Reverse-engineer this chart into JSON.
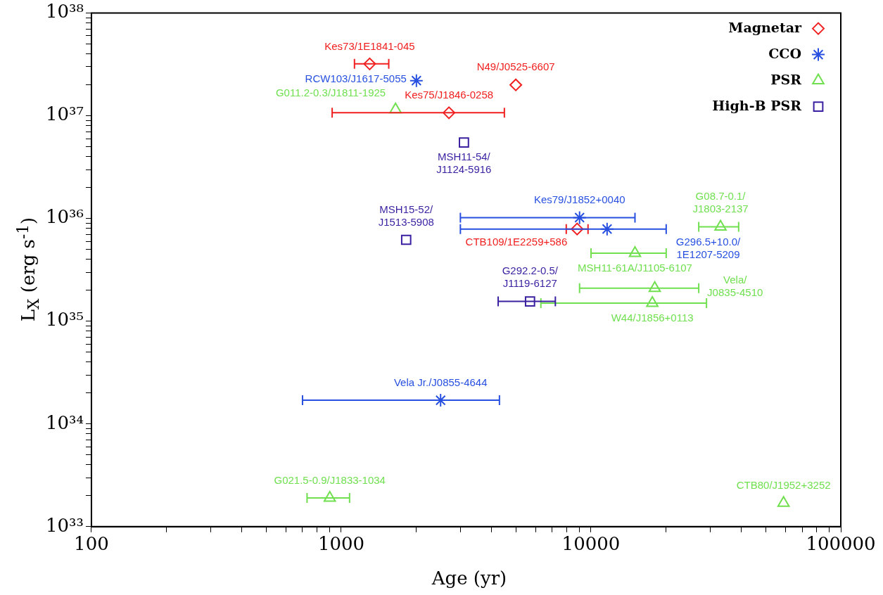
{
  "chart_data": {
    "type": "scatter",
    "xlabel": "Age (yr)",
    "ylabel": "L$_{X}$ (erg s$^{-1}$)",
    "log": "xy",
    "grid": false,
    "legend": "top right",
    "xlim": [
      100,
      100000
    ],
    "ylim": [
      1e+33,
      1e+38
    ],
    "xticks": [
      100,
      {
        "value": 200,
        "label": null
      },
      {
        "value": 300,
        "label": null
      },
      {
        "value": 400,
        "label": null
      },
      {
        "value": 500,
        "label": null
      },
      {
        "value": 600,
        "label": null
      },
      {
        "value": 700,
        "label": null
      },
      {
        "value": 800,
        "label": null
      },
      {
        "value": 900,
        "label": null
      },
      1000,
      {
        "value": 2000,
        "label": null
      },
      {
        "value": 3000,
        "label": null
      },
      {
        "value": 4000,
        "label": null
      },
      {
        "value": 5000,
        "label": null
      },
      {
        "value": 6000,
        "label": null
      },
      {
        "value": 7000,
        "label": null
      },
      {
        "value": 8000,
        "label": null
      },
      {
        "value": 9000,
        "label": null
      },
      10000,
      {
        "value": 20000,
        "label": null
      },
      {
        "value": 30000,
        "label": null
      },
      {
        "value": 40000,
        "label": null
      },
      {
        "value": 50000,
        "label": null
      },
      {
        "value": 60000,
        "label": null
      },
      {
        "value": 70000,
        "label": null
      },
      {
        "value": 80000,
        "label": null
      },
      {
        "value": 90000,
        "label": null
      },
      100000
    ],
    "yticks": [
      {
        "value": 1e+33,
        "label": "10³³"
      },
      {
        "value": 2e+33,
        "label": null
      },
      {
        "value": 3e+33,
        "label": null
      },
      {
        "value": 4e+33,
        "label": null
      },
      {
        "value": 5e+33,
        "label": null
      },
      {
        "value": 6e+33,
        "label": null
      },
      {
        "value": 7e+33,
        "label": null
      },
      {
        "value": 8e+33,
        "label": null
      },
      {
        "value": 9e+33,
        "label": null
      },
      {
        "value": 1e+34,
        "label": "10³⁴"
      },
      {
        "value": 2e+34,
        "label": null
      },
      {
        "value": 3e+34,
        "label": null
      },
      {
        "value": 4e+34,
        "label": null
      },
      {
        "value": 5e+34,
        "label": null
      },
      {
        "value": 6e+34,
        "label": null
      },
      {
        "value": 7e+34,
        "label": null
      },
      {
        "value": 8e+34,
        "label": null
      },
      {
        "value": 9e+34,
        "label": null
      },
      {
        "value": 1e+35,
        "label": "10³⁵"
      },
      {
        "value": 2e+35,
        "label": null
      },
      {
        "value": 3e+35,
        "label": null
      },
      {
        "value": 4e+35,
        "label": null
      },
      {
        "value": 5e+35,
        "label": null
      },
      {
        "value": 6e+35,
        "label": null
      },
      {
        "value": 7e+35,
        "label": null
      },
      {
        "value": 8e+35,
        "label": null
      },
      {
        "value": 9e+35,
        "label": null
      },
      {
        "value": 1e+36,
        "label": "10³⁶"
      },
      {
        "value": 2e+36,
        "label": null
      },
      {
        "value": 3e+36,
        "label": null
      },
      {
        "value": 4e+36,
        "label": null
      },
      {
        "value": 5e+36,
        "label": null
      },
      {
        "value": 6e+36,
        "label": null
      },
      {
        "value": 7e+36,
        "label": null
      },
      {
        "value": 8e+36,
        "label": null
      },
      {
        "value": 9e+36,
        "label": null
      },
      {
        "value": 1e+37,
        "label": "10³⁷"
      },
      {
        "value": 2e+37,
        "label": null
      },
      {
        "value": 3e+37,
        "label": null
      },
      {
        "value": 4e+37,
        "label": null
      },
      {
        "value": 5e+37,
        "label": null
      },
      {
        "value": 6e+37,
        "label": null
      },
      {
        "value": 7e+37,
        "label": null
      },
      {
        "value": 8e+37,
        "label": null
      },
      {
        "value": 9e+37,
        "label": null
      },
      {
        "value": 1e+38,
        "label": "10³⁸"
      }
    ],
    "series": [
      {
        "name": "Magnetar",
        "color": "#f02020",
        "marker": "diamond",
        "x": [
          1300,
          5000,
          2700,
          8800
        ],
        "values": [
          3.2e+37,
          2e+37,
          1.07e+37,
          7.9e+35
        ],
        "xerrors": [
          [
            1130,
            1550
          ],
          null,
          [
            920,
            4500
          ],
          [
            7960,
            9730
          ]
        ]
      },
      {
        "name": "CCO",
        "color": "#2850e0",
        "marker": "cross",
        "x": [
          2000,
          9000,
          11600,
          2500
        ],
        "values": [
          2.2e+37,
          1.02e+36,
          7.9e+35,
          1.7e+34
        ],
        "xerrors": [
          null,
          [
            3000,
            15000
          ],
          [
            3000,
            20000
          ],
          [
            700,
            4300
          ]
        ]
      },
      {
        "name": "PSR",
        "color": "#70e050",
        "marker": "triangle",
        "x": [
          1650,
          33000,
          15000,
          18000,
          17600,
          900,
          59000
        ],
        "values": [
          1.15e+37,
          8.3e+35,
          4.6e+35,
          2.1e+35,
          1.5e+35,
          1.9e+33,
          1.7e+33
        ],
        "xerrors": [
          null,
          [
            27000,
            39000
          ],
          [
            10000,
            20000
          ],
          [
            9000,
            27000
          ],
          [
            6300,
            29000
          ],
          [
            730,
            1080
          ],
          null
        ]
      },
      {
        "name": "High-B PSR",
        "color": "#3a1fa0",
        "marker": "square",
        "x": [
          3100,
          1820,
          5700
        ],
        "values": [
          5.5e+36,
          6.2e+35,
          1.56e+35
        ],
        "xerrors": [
          null,
          null,
          [
            4250,
            7200
          ]
        ]
      }
    ],
    "annotations": [
      {
        "text": "Kes73/1E1841-045",
        "x": 1300,
        "y": 3.2e+37
      },
      {
        "text": "N49/J0525-6607",
        "x": 5000,
        "y": 2e+37
      },
      {
        "text": "Kes75/J1846-0258",
        "x": 2700,
        "y": 1.07e+37
      },
      {
        "text": "CTB109/1E2259+586",
        "x": 8800,
        "y": 7.9e+35
      },
      {
        "text": "RCW103/J1617-5055",
        "x": 2000,
        "y": 2.2e+37
      },
      {
        "text": "Kes79/J1852+0040",
        "x": 9000,
        "y": 1.02e+36
      },
      {
        "text": "G296.5+10.0/\n1E1207-5209",
        "x": 20000,
        "y": 7.9e+35
      },
      {
        "text": "Vela Jr./J0855-4644",
        "x": 2500,
        "y": 1.7e+34
      },
      {
        "text": "G011.2-0.3/J1811-1925",
        "x": 1650,
        "y": 1.15e+37
      },
      {
        "text": "G08.7-0.1/\nJ1803-2137",
        "x": 33000,
        "y": 8.3e+35
      },
      {
        "text": "MSH11-61A/J1105-6107",
        "x": 15000,
        "y": 4.6e+35
      },
      {
        "text": "Vela/\nJ0835-4510",
        "x": 27000,
        "y": 2.1e+35
      },
      {
        "text": "W44/J1856+0113",
        "x": 17600,
        "y": 1.5e+35
      },
      {
        "text": "G021.5-0.9/J1833-1034",
        "x": 900,
        "y": 1.9e+33
      },
      {
        "text": "CTB80/J1952+3252",
        "x": 59000,
        "y": 1.7e+33
      },
      {
        "text": "MSH11-54/\nJ1124-5916",
        "x": 3100,
        "y": 5.5e+36
      },
      {
        "text": "MSH15-52/\nJ1513-5908",
        "x": 1820,
        "y": 6.2e+35
      },
      {
        "text": "G292.2-0.5/\nJ1119-6127",
        "x": 5700,
        "y": 1.56e+35
      }
    ]
  }
}
